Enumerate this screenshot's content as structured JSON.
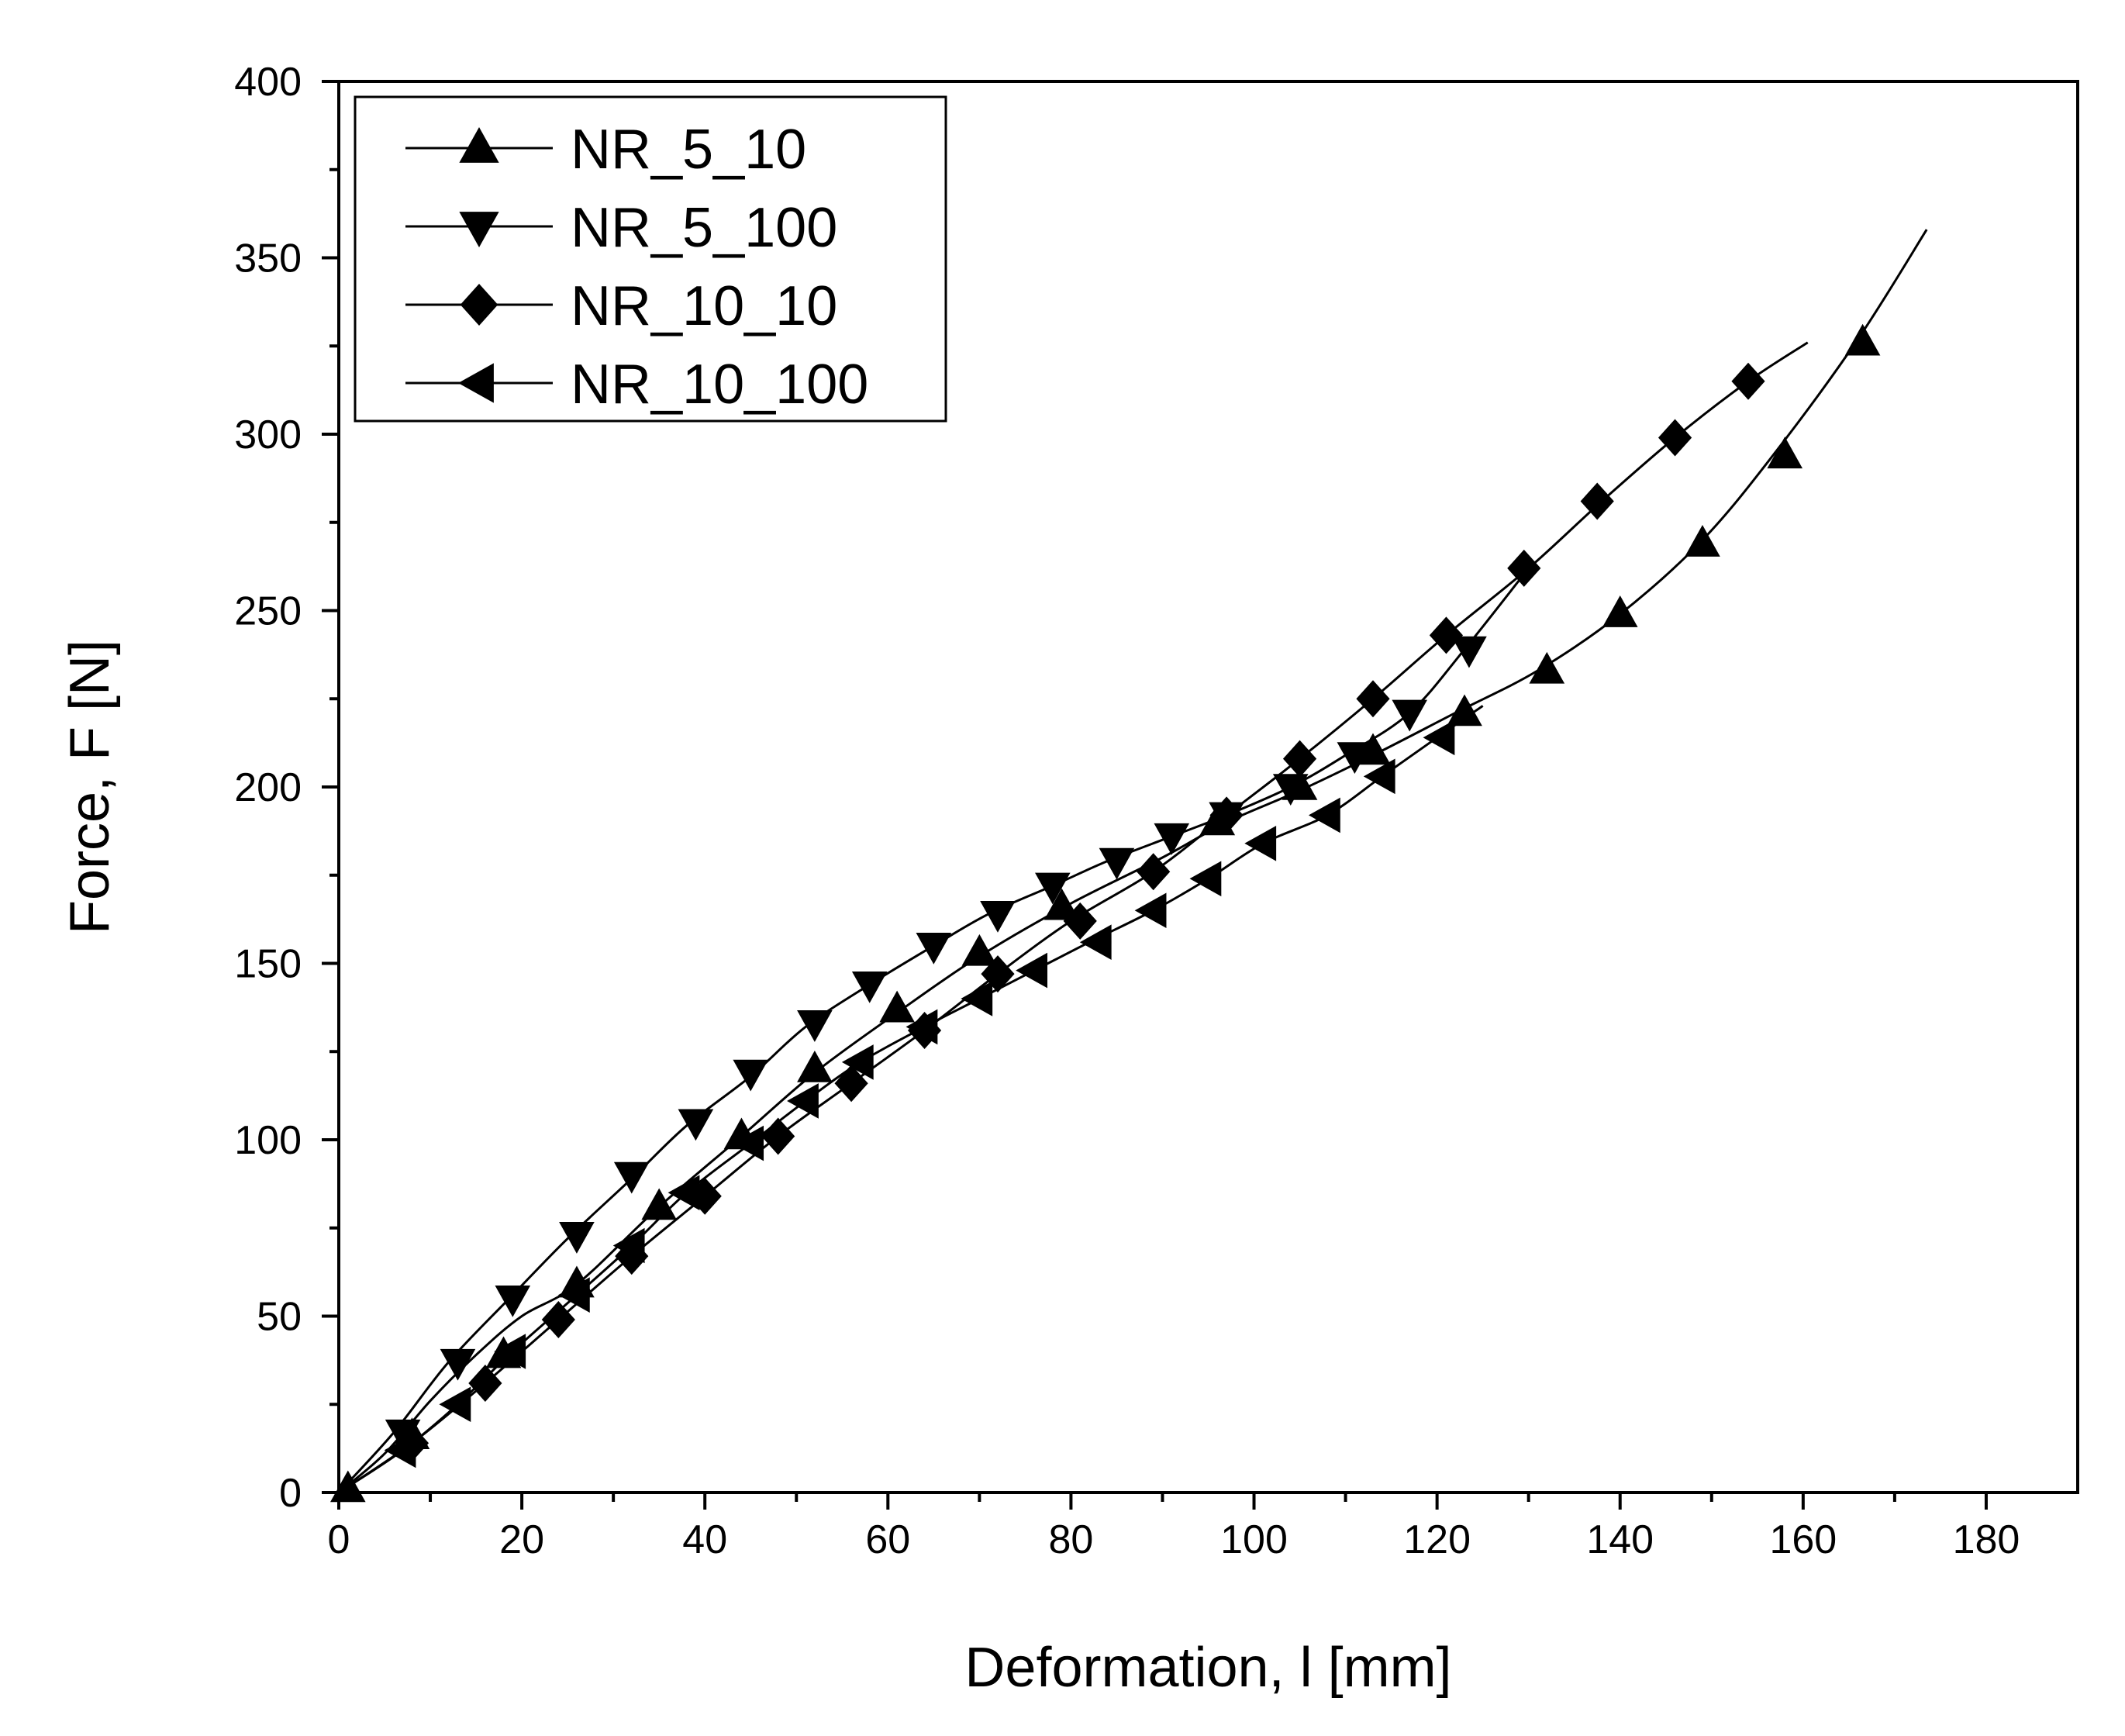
{
  "chart_data": {
    "type": "line",
    "xlabel": "Deformation, l [mm]",
    "ylabel": "Force, F [N]",
    "xlim": [
      0,
      190
    ],
    "ylim": [
      0,
      400
    ],
    "x_ticks": [
      0,
      20,
      40,
      60,
      80,
      100,
      120,
      140,
      160,
      180
    ],
    "y_ticks": [
      0,
      50,
      100,
      150,
      200,
      250,
      300,
      350,
      400
    ],
    "x_tick_labels": [
      "0",
      "20",
      "40",
      "60",
      "80",
      "100",
      "120",
      "140",
      "160",
      "180"
    ],
    "y_tick_labels": [
      "0",
      "50",
      "100",
      "150",
      "200",
      "250",
      "300",
      "350",
      "400"
    ],
    "grid": false,
    "legend_position": "top-left",
    "colors": {
      "line": "#000000",
      "frame": "#000000",
      "background": "#ffffff"
    },
    "series": [
      {
        "name": "NR_5_10",
        "marker": "triangle-up",
        "curve_x": [
          0,
          5,
          10,
          15,
          20,
          26,
          35,
          44,
          52,
          61,
          70,
          80,
          90,
          97,
          105,
          113,
          122,
          131,
          140,
          149,
          157,
          166,
          173.5
        ],
        "curve_y": [
          0,
          11,
          26,
          39,
          50,
          59,
          81,
          101,
          119,
          136,
          152,
          167,
          180,
          190,
          199,
          209,
          221,
          233,
          249,
          270,
          295,
          327,
          358
        ],
        "marker_x": [
          1,
          8,
          18,
          26,
          35,
          44,
          52,
          61,
          70,
          79,
          96,
          105,
          113,
          123,
          132,
          140,
          149,
          158,
          166.5
        ],
        "marker_y": [
          1,
          16,
          39,
          59,
          81,
          101,
          120,
          137,
          153,
          166,
          190,
          200,
          210,
          221,
          233,
          249,
          269,
          294,
          326
        ]
      },
      {
        "name": "NR_5_100",
        "marker": "triangle-down",
        "curve_x": [
          0,
          6,
          12,
          19,
          25,
          32,
          38,
          45,
          51,
          58,
          65,
          71,
          78,
          84,
          91,
          97,
          104,
          110,
          117,
          123,
          130
        ],
        "curve_y": [
          0,
          17,
          37,
          56,
          72,
          89,
          104,
          118,
          132,
          144,
          155,
          164,
          172,
          179,
          186,
          192,
          200,
          209,
          221,
          239,
          262
        ],
        "marker_x": [
          7,
          13,
          19,
          26,
          32,
          39,
          45,
          52,
          58,
          65,
          72,
          78,
          85,
          91,
          97,
          104,
          111,
          117,
          123.5
        ],
        "marker_y": [
          17,
          37,
          55,
          73,
          90,
          105,
          119,
          133,
          144,
          155,
          164,
          172,
          179,
          186,
          192,
          200,
          209,
          221,
          239
        ]
      },
      {
        "name": "NR_10_10",
        "marker": "diamond",
        "curve_x": [
          0,
          8,
          16,
          24,
          32,
          40,
          48,
          56,
          64,
          72,
          80,
          89,
          97,
          105,
          113,
          121,
          130,
          138,
          146,
          154,
          160.5
        ],
        "curve_y": [
          0,
          14,
          31,
          49,
          67,
          84,
          101,
          116,
          131,
          147,
          162,
          176,
          192,
          208,
          225,
          243,
          262,
          281,
          299,
          315,
          326
        ],
        "marker_x": [
          8,
          16,
          24,
          32,
          40,
          48,
          56,
          64,
          72,
          81,
          89,
          97,
          105,
          113,
          121,
          129.5,
          137.5,
          146,
          154
        ],
        "marker_y": [
          14,
          31,
          49,
          67,
          84,
          101,
          116,
          131,
          147,
          162,
          176,
          192,
          208,
          225,
          243,
          262,
          281,
          299,
          315
        ]
      },
      {
        "name": "NR_10_100",
        "marker": "triangle-left",
        "curve_x": [
          0,
          7,
          13,
          19,
          26,
          32,
          38,
          45,
          51,
          57,
          64,
          70,
          76,
          82,
          89,
          95,
          101,
          108,
          114,
          120,
          125
        ],
        "curve_y": [
          0,
          12,
          25,
          40,
          56,
          70,
          85,
          99,
          111,
          122,
          132,
          140,
          148,
          156,
          165,
          174,
          184,
          192,
          203,
          214,
          223
        ],
        "marker_x": [
          7,
          13,
          19,
          26,
          32,
          38,
          45,
          51,
          57,
          64,
          70,
          76,
          83,
          89,
          95,
          101,
          108,
          114,
          120.5
        ],
        "marker_y": [
          12,
          25,
          40,
          56,
          70,
          85,
          99,
          111,
          122,
          132,
          140,
          148,
          156,
          165,
          174,
          184,
          192,
          203,
          214
        ]
      }
    ]
  }
}
